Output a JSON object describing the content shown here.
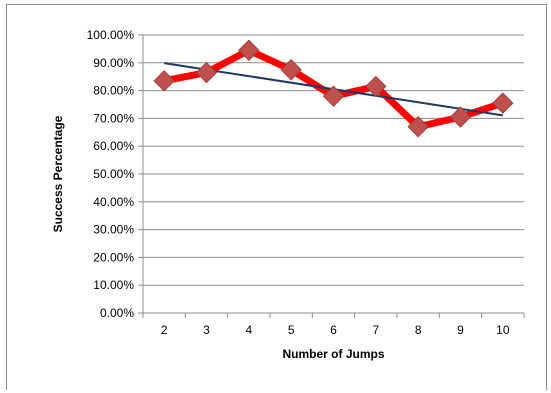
{
  "chart_data": {
    "type": "line",
    "title": "",
    "xlabel": "Number of Jumps",
    "ylabel": "Success Percentage",
    "categories": [
      "2",
      "3",
      "4",
      "5",
      "6",
      "7",
      "8",
      "9",
      "10"
    ],
    "series": [
      {
        "values": [
          83.5,
          86.5,
          94.5,
          87.5,
          78.0,
          81.5,
          67.0,
          70.5,
          75.5
        ],
        "color": "#ff0000",
        "marker": "diamond",
        "marker_color": "#c0504d"
      }
    ],
    "trendline": {
      "type": "linear",
      "color": "#1f3864"
    },
    "ylim": [
      0,
      100
    ],
    "ytick_step": 10,
    "ytick_labels": [
      "0.00%",
      "10.00%",
      "20.00%",
      "30.00%",
      "40.00%",
      "50.00%",
      "60.00%",
      "70.00%",
      "80.00%",
      "90.00%",
      "100.00%"
    ],
    "grid": true,
    "legend": "none"
  }
}
